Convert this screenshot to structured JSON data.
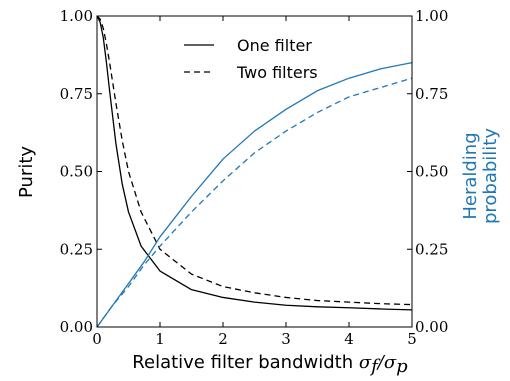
{
  "chart_data": {
    "type": "line",
    "xlabel_text": "Relative filter bandwidth ",
    "xlabel_math": "σ",
    "xlabel_math_sub1": "f",
    "xlabel_math_sep": "/σ",
    "xlabel_math_sub2": "p",
    "ylabel_left": "Purity",
    "ylabel_right_line1": "Heralding",
    "ylabel_right_line2": "probability",
    "right_axis_color": "#1f77b4",
    "xlim": [
      0,
      5
    ],
    "ylim": [
      0,
      1
    ],
    "x_ticks": [
      "0",
      "1",
      "2",
      "3",
      "4",
      "5"
    ],
    "y_ticks_left": [
      "0.00",
      "0.25",
      "0.50",
      "0.75",
      "1.00"
    ],
    "y_ticks_right": [
      "0.00",
      "0.25",
      "0.50",
      "0.75",
      "1.00"
    ],
    "legend": [
      {
        "label": "One filter",
        "style": "solid"
      },
      {
        "label": "Two filters",
        "style": "dashed"
      }
    ],
    "legend_position": "top-center",
    "series": [
      {
        "name": "One filter",
        "axis": "left",
        "color": "#000000",
        "style": "solid",
        "x": [
          0.0,
          0.05,
          0.1,
          0.15,
          0.2,
          0.3,
          0.4,
          0.5,
          0.7,
          1.0,
          1.5,
          2.0,
          2.5,
          3.0,
          3.5,
          4.0,
          4.5,
          5.0
        ],
        "y": [
          1.0,
          0.98,
          0.93,
          0.85,
          0.76,
          0.59,
          0.46,
          0.37,
          0.26,
          0.18,
          0.12,
          0.095,
          0.08,
          0.07,
          0.065,
          0.062,
          0.058,
          0.055
        ]
      },
      {
        "name": "Two filters",
        "axis": "left",
        "color": "#000000",
        "style": "dashed",
        "x": [
          0.0,
          0.05,
          0.1,
          0.15,
          0.2,
          0.3,
          0.4,
          0.5,
          0.7,
          1.0,
          1.5,
          2.0,
          2.5,
          3.0,
          3.5,
          4.0,
          4.5,
          5.0
        ],
        "y": [
          1.0,
          0.99,
          0.96,
          0.91,
          0.85,
          0.72,
          0.6,
          0.5,
          0.37,
          0.25,
          0.17,
          0.13,
          0.11,
          0.095,
          0.085,
          0.08,
          0.075,
          0.072
        ]
      },
      {
        "name": "One filter",
        "axis": "right",
        "color": "#1f77b4",
        "style": "solid",
        "x": [
          0.0,
          0.25,
          0.5,
          0.75,
          1.0,
          1.5,
          2.0,
          2.5,
          3.0,
          3.5,
          4.0,
          4.5,
          5.0
        ],
        "y": [
          0.0,
          0.07,
          0.14,
          0.21,
          0.29,
          0.42,
          0.54,
          0.63,
          0.7,
          0.76,
          0.8,
          0.83,
          0.85
        ]
      },
      {
        "name": "Two filters",
        "axis": "right",
        "color": "#1f77b4",
        "style": "dashed",
        "x": [
          0.0,
          0.25,
          0.5,
          0.75,
          1.0,
          1.5,
          2.0,
          2.5,
          3.0,
          3.5,
          4.0,
          4.5,
          5.0
        ],
        "y": [
          0.0,
          0.07,
          0.13,
          0.2,
          0.26,
          0.37,
          0.47,
          0.56,
          0.63,
          0.69,
          0.74,
          0.77,
          0.8
        ]
      }
    ]
  }
}
